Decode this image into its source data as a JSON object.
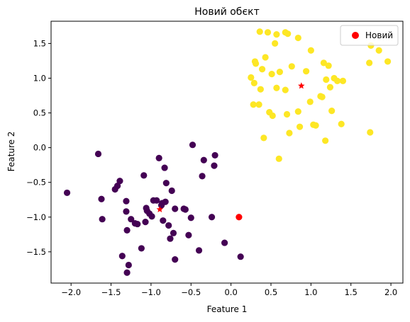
{
  "chart_data": {
    "type": "scatter",
    "title": "Новий обєкт",
    "xlabel": "Feature 1",
    "ylabel": "Feature 2",
    "xlim": [
      -2.25,
      2.15
    ],
    "ylim": [
      -1.95,
      1.82
    ],
    "xticks": [
      -2.0,
      -1.5,
      -1.0,
      -0.5,
      0.0,
      0.5,
      1.0,
      1.5,
      2.0
    ],
    "xtick_labels": [
      "−2.0",
      "−1.5",
      "−1.0",
      "−0.5",
      "0.0",
      "0.5",
      "1.0",
      "1.5",
      "2.0"
    ],
    "yticks": [
      -1.5,
      -1.0,
      -0.5,
      0.0,
      0.5,
      1.0,
      1.5
    ],
    "ytick_labels": [
      "−1.5",
      "−1.0",
      "−0.5",
      "0.0",
      "0.5",
      "1.0",
      "1.5"
    ],
    "grid": false,
    "legend_position": "top-right",
    "series": [
      {
        "color": "#440154",
        "points": [
          [
            -2.05,
            -0.65
          ],
          [
            -1.66,
            -0.09
          ],
          [
            -1.62,
            -0.74
          ],
          [
            -1.61,
            -1.03
          ],
          [
            -1.45,
            -0.6
          ],
          [
            -1.42,
            -0.55
          ],
          [
            -1.39,
            -0.48
          ],
          [
            -1.36,
            -1.56
          ],
          [
            -1.31,
            -0.77
          ],
          [
            -1.31,
            -0.92
          ],
          [
            -1.3,
            -1.19
          ],
          [
            -1.3,
            -1.8
          ],
          [
            -1.28,
            -1.69
          ],
          [
            -1.25,
            -1.03
          ],
          [
            -1.2,
            -1.09
          ],
          [
            -1.17,
            -1.1
          ],
          [
            -1.12,
            -1.45
          ],
          [
            -1.09,
            -0.4
          ],
          [
            -1.07,
            -1.07
          ],
          [
            -1.06,
            -0.87
          ],
          [
            -1.05,
            -0.91
          ],
          [
            -1.02,
            -0.95
          ],
          [
            -0.99,
            -0.99
          ],
          [
            -0.97,
            -0.76
          ],
          [
            -0.93,
            -0.76
          ],
          [
            -0.9,
            -0.15
          ],
          [
            -0.87,
            -0.83
          ],
          [
            -0.86,
            -0.8
          ],
          [
            -0.85,
            -1.05
          ],
          [
            -0.83,
            -0.29
          ],
          [
            -0.82,
            -0.78
          ],
          [
            -0.81,
            -0.51
          ],
          [
            -0.78,
            -1.12
          ],
          [
            -0.76,
            -1.31
          ],
          [
            -0.74,
            -0.62
          ],
          [
            -0.72,
            -1.23
          ],
          [
            -0.7,
            -1.61
          ],
          [
            -0.7,
            -0.88
          ],
          [
            -0.59,
            -0.88
          ],
          [
            -0.57,
            -0.89
          ],
          [
            -0.53,
            -1.26
          ],
          [
            -0.5,
            -1.01
          ],
          [
            -0.48,
            0.04
          ],
          [
            -0.4,
            -1.48
          ],
          [
            -0.36,
            -0.41
          ],
          [
            -0.34,
            -0.18
          ],
          [
            -0.24,
            -1.0
          ],
          [
            -0.21,
            -0.26
          ],
          [
            -0.2,
            -0.11
          ],
          [
            -0.08,
            -1.37
          ],
          [
            0.12,
            -1.57
          ]
        ]
      },
      {
        "color": "#fde725",
        "points": [
          [
            0.25,
            1.01
          ],
          [
            0.28,
            0.62
          ],
          [
            0.29,
            0.93
          ],
          [
            0.3,
            1.24
          ],
          [
            0.31,
            1.21
          ],
          [
            0.35,
            0.62
          ],
          [
            0.36,
            1.67
          ],
          [
            0.37,
            0.84
          ],
          [
            0.39,
            1.13
          ],
          [
            0.41,
            0.14
          ],
          [
            0.43,
            1.3
          ],
          [
            0.46,
            1.66
          ],
          [
            0.48,
            0.51
          ],
          [
            0.51,
            1.06
          ],
          [
            0.52,
            0.46
          ],
          [
            0.55,
            1.5
          ],
          [
            0.57,
            0.86
          ],
          [
            0.57,
            1.63
          ],
          [
            0.6,
            -0.16
          ],
          [
            0.61,
            1.09
          ],
          [
            0.68,
            1.66
          ],
          [
            0.68,
            0.83
          ],
          [
            0.7,
            0.48
          ],
          [
            0.71,
            1.64
          ],
          [
            0.73,
            0.21
          ],
          [
            0.76,
            1.17
          ],
          [
            0.84,
            1.58
          ],
          [
            0.84,
            0.52
          ],
          [
            0.86,
            0.3
          ],
          [
            0.94,
            1.1
          ],
          [
            0.99,
            0.66
          ],
          [
            1.0,
            1.4
          ],
          [
            1.03,
            0.33
          ],
          [
            1.06,
            0.32
          ],
          [
            1.12,
            0.74
          ],
          [
            1.14,
            0.73
          ],
          [
            1.16,
            1.22
          ],
          [
            1.18,
            0.1
          ],
          [
            1.19,
            0.98
          ],
          [
            1.22,
            1.18
          ],
          [
            1.24,
            0.87
          ],
          [
            1.26,
            0.53
          ],
          [
            1.29,
            1.0
          ],
          [
            1.33,
            0.96
          ],
          [
            1.38,
            0.34
          ],
          [
            1.4,
            0.96
          ],
          [
            1.73,
            1.22
          ],
          [
            1.74,
            0.22
          ],
          [
            1.75,
            1.47
          ],
          [
            1.85,
            1.4
          ],
          [
            1.96,
            1.24
          ]
        ]
      }
    ],
    "centroids": {
      "color": "#ff0000",
      "marker": "star",
      "points": [
        [
          -0.89,
          -0.89
        ],
        [
          0.88,
          0.89
        ]
      ]
    },
    "new_point": {
      "name": "Новий",
      "color": "#ff0000",
      "point": [
        0.1,
        -1.0
      ]
    }
  }
}
